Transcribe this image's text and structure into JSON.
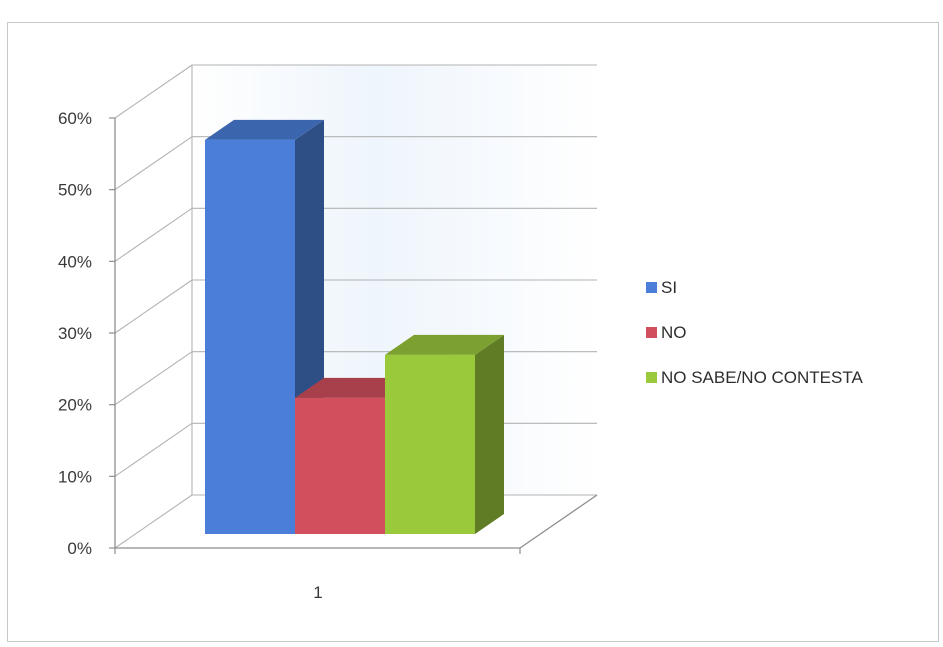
{
  "chart_data": {
    "type": "bar",
    "categories": [
      "1"
    ],
    "series": [
      {
        "name": "SI",
        "values": [
          0.55
        ],
        "color": "#4a7ed8"
      },
      {
        "name": "NO",
        "values": [
          0.19
        ],
        "color": "#d2505e"
      },
      {
        "name": "NO SABE/NO CONTESTA",
        "values": [
          0.25
        ],
        "color": "#9bc93c"
      }
    ],
    "ylim": [
      0,
      0.6
    ],
    "y_ticks": [
      "0%",
      "10%",
      "20%",
      "30%",
      "40%",
      "50%",
      "60%"
    ],
    "grid": true,
    "legend_position": "right",
    "style": "3d-column"
  }
}
